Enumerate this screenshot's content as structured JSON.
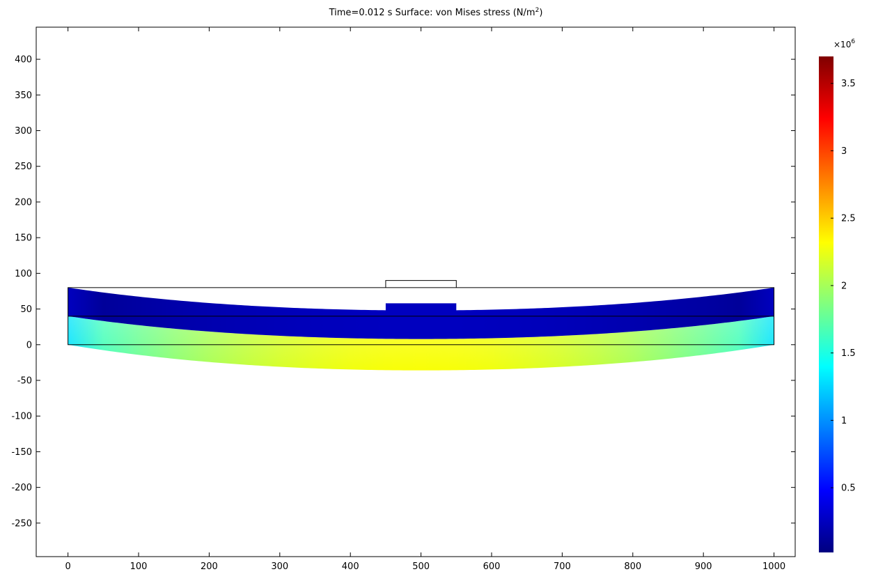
{
  "chart_data": {
    "type": "heatmap",
    "title_main": "Time=0.012 s   Surface: von Mises stress (N/m",
    "title_sup": "2",
    "title_end": ")",
    "xlim": [
      -45,
      1030
    ],
    "ylim": [
      -297,
      445
    ],
    "x_ticks": [
      0,
      100,
      200,
      300,
      400,
      500,
      600,
      700,
      800,
      900,
      1000
    ],
    "y_ticks": [
      -250,
      -200,
      -150,
      -100,
      -50,
      0,
      50,
      100,
      150,
      200,
      250,
      300,
      350,
      400
    ],
    "colorbar": {
      "exponent_base": "×10",
      "exponent_power": "6",
      "range": [
        0.02,
        3.7
      ],
      "ticks": [
        0.5,
        1,
        1.5,
        2,
        2.5,
        3,
        3.5
      ],
      "tick_labels": [
        "0.5",
        "1",
        "1.5",
        "2",
        "2.5",
        "3",
        "3.5"
      ],
      "colormap": "jet"
    },
    "geometry": {
      "undeformed_beam": {
        "x": [
          0,
          1000
        ],
        "y": [
          0,
          80
        ]
      },
      "undeformed_layer_line": 40,
      "undeformed_load_plate": {
        "x": [
          450,
          550
        ],
        "y": [
          80,
          90
        ]
      },
      "deformed_top_edge_ends": 80,
      "deformed_top_edge_mid": 48,
      "deformed_layer_ends": 40,
      "deformed_layer_mid": 8,
      "deformed_bottom_ends": 0,
      "deformed_bottom_mid": -36,
      "deformed_plate_top": 58
    },
    "stress_field": {
      "top_layer_stress": [
        0.03,
        0.25
      ],
      "bottom_layer_end_stress": 1.5,
      "bottom_layer_mid_stress": 2.3
    }
  }
}
